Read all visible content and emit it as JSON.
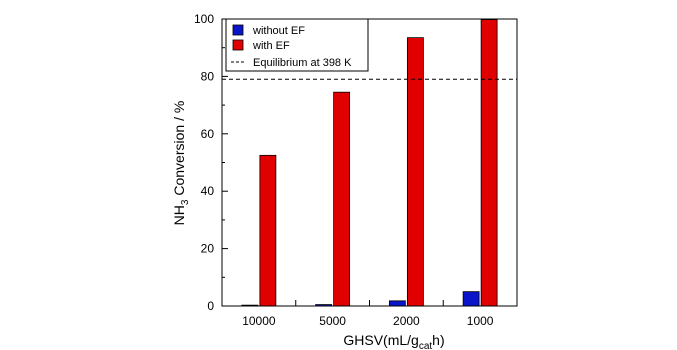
{
  "chart_data": {
    "type": "bar",
    "categories": [
      "10000",
      "5000",
      "2000",
      "1000"
    ],
    "series": [
      {
        "name": "without EF",
        "color": "#0a14c8",
        "values": [
          0.3,
          0.5,
          1.8,
          5.0
        ]
      },
      {
        "name": "with EF",
        "color": "#e00000",
        "values": [
          52.5,
          74.5,
          93.5,
          99.8
        ]
      }
    ],
    "reference_line": {
      "label": "Equilibrium at 398 K",
      "value": 79,
      "style": "dashed"
    },
    "xlabel": {
      "main": "GHSV(mL/g",
      "sub": "cat",
      "tail": "h)"
    },
    "ylabel": {
      "main": "NH",
      "sub": "3",
      "tail": " Conversion / %"
    },
    "ylim": [
      0,
      100
    ],
    "yticks": [
      0,
      20,
      40,
      60,
      80,
      100
    ],
    "grid": false,
    "legend_position": "top-left"
  }
}
